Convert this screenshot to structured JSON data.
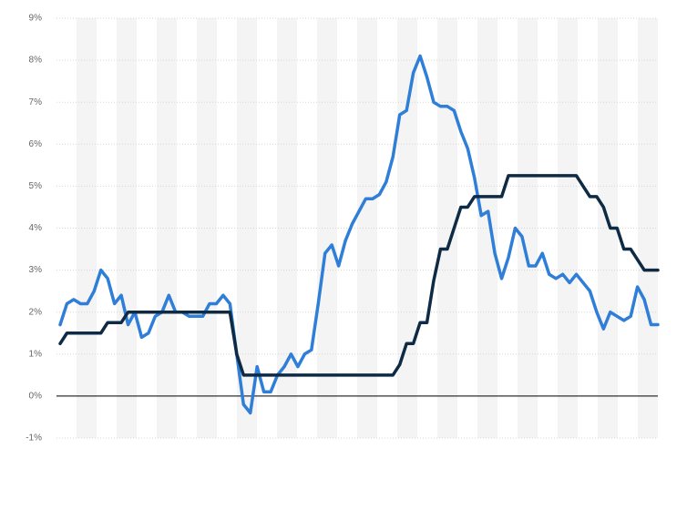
{
  "chart_data": {
    "type": "line",
    "categories": [
      null,
      null,
      null,
      null,
      null,
      null,
      null,
      null,
      null,
      null,
      null,
      null,
      null,
      null,
      null,
      null,
      null,
      null,
      null,
      null,
      null,
      null,
      null,
      null,
      null,
      null,
      null,
      null,
      null,
      null,
      null,
      null,
      null,
      null,
      null,
      null,
      null,
      null,
      null,
      null,
      null,
      null,
      null,
      null,
      null,
      null,
      null,
      null,
      null,
      null,
      null,
      null,
      null,
      null,
      null,
      null,
      null,
      null,
      null,
      null,
      null,
      null,
      null,
      null,
      null,
      null,
      null,
      null,
      null,
      null,
      null,
      null,
      null,
      null,
      null,
      null,
      null,
      null,
      null,
      null,
      null,
      null,
      null,
      null,
      null,
      null,
      null,
      null,
      null
    ],
    "series": [
      {
        "color": "#2f7ed8",
        "values": [
          1.7,
          2.2,
          2.3,
          2.2,
          2.2,
          2.5,
          3.0,
          2.8,
          2.2,
          2.4,
          1.7,
          2.0,
          1.4,
          1.5,
          1.9,
          2.0,
          2.4,
          2.0,
          2.0,
          1.9,
          1.9,
          1.9,
          2.2,
          2.2,
          2.4,
          2.2,
          1.0,
          -0.2,
          -0.4,
          0.7,
          0.1,
          0.1,
          0.5,
          0.7,
          1.0,
          0.7,
          1.0,
          1.1,
          2.2,
          3.4,
          3.6,
          3.1,
          3.7,
          4.1,
          4.4,
          4.7,
          4.7,
          4.8,
          5.1,
          5.7,
          6.7,
          6.8,
          7.7,
          8.1,
          7.6,
          7.0,
          6.9,
          6.9,
          6.8,
          6.3,
          5.9,
          5.2,
          4.3,
          4.4,
          3.4,
          2.8,
          3.3,
          4.0,
          3.8,
          3.1,
          3.1,
          3.4,
          2.9,
          2.8,
          2.9,
          2.7,
          2.9,
          2.7,
          2.5,
          2.0,
          1.6,
          2.0,
          1.9,
          1.8,
          1.9,
          2.6,
          2.3,
          1.7,
          1.7
        ]
      },
      {
        "color": "#0f2a44",
        "values": [
          1.25,
          1.5,
          1.5,
          1.5,
          1.5,
          1.5,
          1.5,
          1.75,
          1.75,
          1.75,
          2,
          2,
          2,
          2,
          2,
          2,
          2,
          2,
          2,
          2,
          2,
          2,
          2,
          2,
          2,
          2,
          1.0,
          0.5,
          0.5,
          0.5,
          0.5,
          0.5,
          0.5,
          0.5,
          0.5,
          0.5,
          0.5,
          0.5,
          0.5,
          0.5,
          0.5,
          0.5,
          0.5,
          0.5,
          0.5,
          0.5,
          0.5,
          0.5,
          0.5,
          0.5,
          0.75,
          1.25,
          1.25,
          1.75,
          1.75,
          2.75,
          3.5,
          3.5,
          4.0,
          4.5,
          4.5,
          4.75,
          4.75,
          4.75,
          4.75,
          4.75,
          5.25,
          5.25,
          5.25,
          5.25,
          5.25,
          5.25,
          5.25,
          5.25,
          5.25,
          5.25,
          5.25,
          5.0,
          4.75,
          4.75,
          4.5,
          4.0,
          4.0,
          3.5,
          3.5,
          3.25,
          3.0,
          3.0,
          3.0
        ]
      }
    ],
    "ylim": [
      -1,
      9
    ],
    "yticks": [
      {
        "value": -1,
        "label": "-1%"
      },
      {
        "value": 0,
        "label": "0%"
      },
      {
        "value": 1,
        "label": "1%"
      },
      {
        "value": 2,
        "label": "2%"
      },
      {
        "value": 3,
        "label": "3%"
      },
      {
        "value": 4,
        "label": "4%"
      },
      {
        "value": 5,
        "label": "5%"
      },
      {
        "value": 6,
        "label": "6%"
      },
      {
        "value": 7,
        "label": "7%"
      },
      {
        "value": 8,
        "label": "8%"
      },
      {
        "value": 9,
        "label": "9%"
      }
    ],
    "grid": true
  }
}
